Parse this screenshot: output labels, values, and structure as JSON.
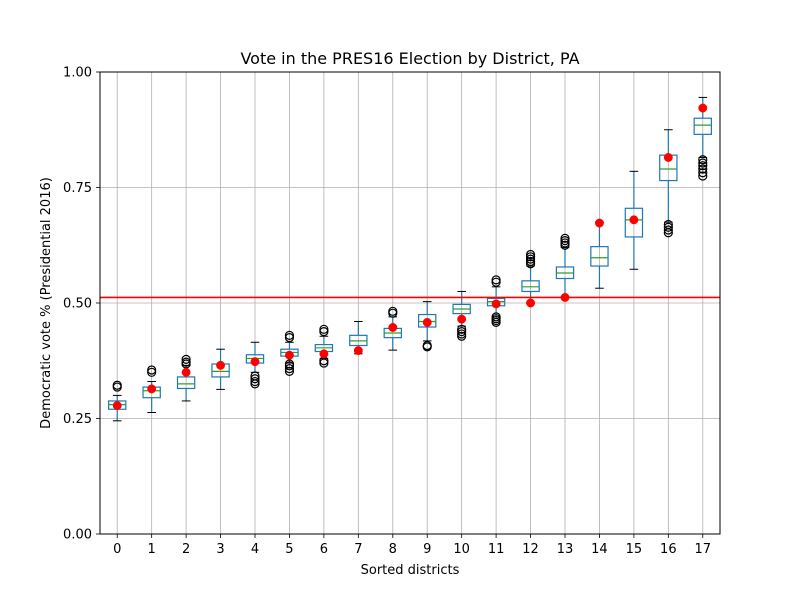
{
  "chart_data": {
    "type": "box",
    "title": "Vote in the PRES16 Election by District, PA",
    "xlabel": "Sorted districts",
    "ylabel": "Democratic vote % (Presidential 2016)",
    "ylim": [
      0.0,
      1.0
    ],
    "xlim": [
      -0.5,
      17.5
    ],
    "yticks": [
      0.0,
      0.25,
      0.5,
      0.75,
      1.0
    ],
    "ytick_labels": [
      "0.00",
      "0.25",
      "0.50",
      "0.75",
      "1.00"
    ],
    "categories": [
      "0",
      "1",
      "2",
      "3",
      "4",
      "5",
      "6",
      "7",
      "8",
      "9",
      "10",
      "11",
      "12",
      "13",
      "14",
      "15",
      "16",
      "17"
    ],
    "grid": true,
    "reference_line": {
      "y": 0.512,
      "color": "#ff0000"
    },
    "colors": {
      "box": "#1f77b4",
      "median": "#2ca02c",
      "whisker": "#1f77b4",
      "flier": "#000000",
      "enacted_point": "#ff0000",
      "grid": "#b0b0b0"
    },
    "boxes": [
      {
        "district": 0,
        "whislo": 0.245,
        "q1": 0.27,
        "med": 0.28,
        "q3": 0.288,
        "whishi": 0.3,
        "fliers": [
          0.318,
          0.322
        ]
      },
      {
        "district": 1,
        "whislo": 0.263,
        "q1": 0.295,
        "med": 0.31,
        "q3": 0.318,
        "whishi": 0.33,
        "fliers": [
          0.35,
          0.355
        ]
      },
      {
        "district": 2,
        "whislo": 0.288,
        "q1": 0.315,
        "med": 0.325,
        "q3": 0.34,
        "whishi": 0.365,
        "fliers": [
          0.368,
          0.372,
          0.378
        ]
      },
      {
        "district": 3,
        "whislo": 0.313,
        "q1": 0.34,
        "med": 0.352,
        "q3": 0.368,
        "whishi": 0.4,
        "fliers": []
      },
      {
        "district": 4,
        "whislo": 0.35,
        "q1": 0.37,
        "med": 0.38,
        "q3": 0.388,
        "whishi": 0.415,
        "fliers": [
          0.325,
          0.33,
          0.336,
          0.342
        ]
      },
      {
        "district": 5,
        "whislo": 0.37,
        "q1": 0.385,
        "med": 0.393,
        "q3": 0.4,
        "whishi": 0.415,
        "fliers": [
          0.352,
          0.358,
          0.364,
          0.368,
          0.425,
          0.43
        ]
      },
      {
        "district": 6,
        "whislo": 0.38,
        "q1": 0.395,
        "med": 0.403,
        "q3": 0.41,
        "whishi": 0.428,
        "fliers": [
          0.37,
          0.375,
          0.438,
          0.443
        ]
      },
      {
        "district": 7,
        "whislo": 0.39,
        "q1": 0.408,
        "med": 0.418,
        "q3": 0.43,
        "whishi": 0.46,
        "fliers": []
      },
      {
        "district": 8,
        "whislo": 0.398,
        "q1": 0.425,
        "med": 0.435,
        "q3": 0.445,
        "whishi": 0.47,
        "fliers": [
          0.478,
          0.482
        ]
      },
      {
        "district": 9,
        "whislo": 0.418,
        "q1": 0.448,
        "med": 0.46,
        "q3": 0.475,
        "whishi": 0.503,
        "fliers": [
          0.405,
          0.408
        ]
      },
      {
        "district": 10,
        "whislo": 0.45,
        "q1": 0.477,
        "med": 0.487,
        "q3": 0.497,
        "whishi": 0.525,
        "fliers": [
          0.428,
          0.433,
          0.438,
          0.443
        ]
      },
      {
        "district": 11,
        "whislo": 0.47,
        "q1": 0.494,
        "med": 0.503,
        "q3": 0.51,
        "whishi": 0.535,
        "fliers": [
          0.458,
          0.462,
          0.466,
          0.47,
          0.545,
          0.55
        ]
      },
      {
        "district": 12,
        "whislo": 0.5,
        "q1": 0.525,
        "med": 0.535,
        "q3": 0.548,
        "whishi": 0.58,
        "fliers": [
          0.585,
          0.59,
          0.595,
          0.6,
          0.605
        ]
      },
      {
        "district": 13,
        "whislo": 0.512,
        "q1": 0.553,
        "med": 0.565,
        "q3": 0.578,
        "whishi": 0.62,
        "fliers": [
          0.625,
          0.63,
          0.635,
          0.64
        ]
      },
      {
        "district": 14,
        "whislo": 0.532,
        "q1": 0.58,
        "med": 0.598,
        "q3": 0.622,
        "whishi": 0.675,
        "fliers": []
      },
      {
        "district": 15,
        "whislo": 0.573,
        "q1": 0.643,
        "med": 0.68,
        "q3": 0.705,
        "whishi": 0.785,
        "fliers": []
      },
      {
        "district": 16,
        "whislo": 0.675,
        "q1": 0.765,
        "med": 0.79,
        "q3": 0.82,
        "whishi": 0.875,
        "fliers": [
          0.652,
          0.658,
          0.664,
          0.67
        ]
      },
      {
        "district": 17,
        "whislo": 0.815,
        "q1": 0.865,
        "med": 0.885,
        "q3": 0.9,
        "whishi": 0.945,
        "fliers": [
          0.775,
          0.782,
          0.79,
          0.797,
          0.803,
          0.81
        ]
      }
    ],
    "enacted": [
      0.278,
      0.314,
      0.35,
      0.365,
      0.373,
      0.387,
      0.39,
      0.397,
      0.447,
      0.458,
      0.465,
      0.498,
      0.5,
      0.512,
      0.673,
      0.68,
      0.815,
      0.922
    ]
  }
}
